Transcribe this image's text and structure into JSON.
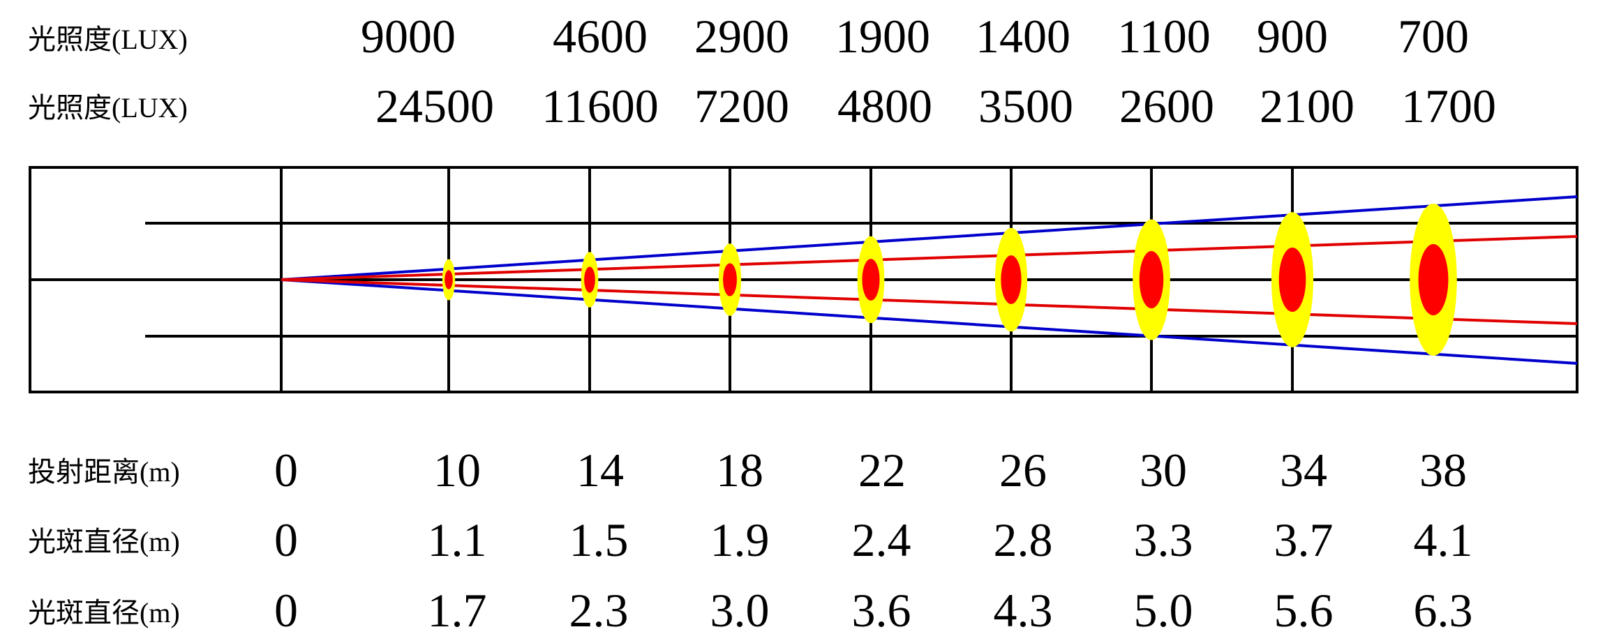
{
  "rows": {
    "lux_narrow": {
      "label": "光照度(LUX)",
      "values": [
        "9000",
        "4600",
        "2900",
        "1900",
        "1400",
        "1100",
        "900",
        "700"
      ]
    },
    "lux_wide": {
      "label": "光照度(LUX)",
      "values": [
        "24500",
        "11600",
        "7200",
        "4800",
        "3500",
        "2600",
        "2100",
        "1700"
      ]
    },
    "distance": {
      "label": "投射距离(m)",
      "values": [
        "0",
        "10",
        "14",
        "18",
        "22",
        "26",
        "30",
        "34",
        "38"
      ]
    },
    "spot_diameter_inner": {
      "label": "光斑直径(m)",
      "values": [
        "0",
        "1.1",
        "1.5",
        "1.9",
        "2.4",
        "2.8",
        "3.3",
        "3.7",
        "4.1"
      ]
    },
    "spot_diameter_outer": {
      "label": "光斑直径(m)",
      "values": [
        "0",
        "1.7",
        "2.3",
        "3.0",
        "3.6",
        "4.3",
        "5.0",
        "5.6",
        "6.3"
      ]
    }
  },
  "chart_data": {
    "type": "beam-diagram",
    "distance_m": [
      10,
      14,
      18,
      22,
      26,
      30,
      34,
      38
    ],
    "illuminance_lux_narrow": [
      9000,
      4600,
      2900,
      1900,
      1400,
      1100,
      900,
      700
    ],
    "illuminance_lux_wide": [
      24500,
      11600,
      7200,
      4800,
      3500,
      2600,
      2100,
      1700
    ],
    "spot_diameter_m_inner": [
      1.1,
      1.5,
      1.9,
      2.4,
      2.8,
      3.3,
      3.7,
      4.1
    ],
    "spot_diameter_m_outer": [
      1.7,
      2.3,
      3.0,
      3.6,
      4.3,
      5.0,
      5.6,
      6.3
    ]
  },
  "colors": {
    "grid": "#000000",
    "outer_beam": "#0000cc",
    "inner_beam": "#e00000",
    "outer_spot": "#ffff00",
    "inner_spot": "#ff0000"
  }
}
